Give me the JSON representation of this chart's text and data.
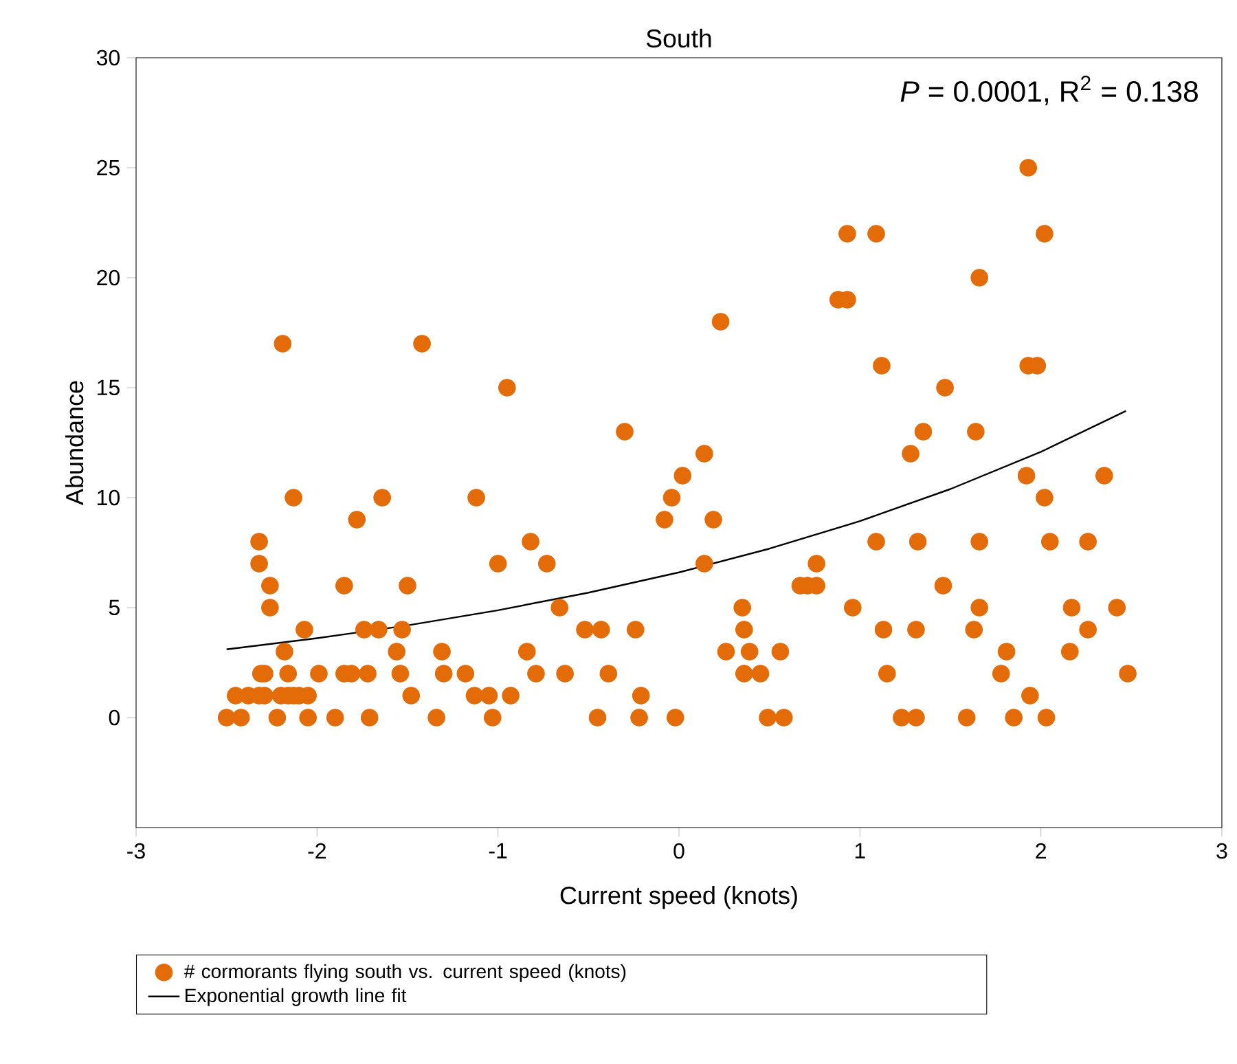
{
  "chart_data": {
    "type": "scatter",
    "title": "South",
    "xlabel": "Current speed (knots)",
    "ylabel": "Abundance",
    "annotations": [
      "*P* = 0.0001,  R$^{2}$ = 0.138"
    ],
    "xlim": [
      -3,
      3
    ],
    "ylim": [
      -5,
      30
    ],
    "xticks": [
      -3,
      -2,
      -1,
      0,
      1,
      2,
      3
    ],
    "yticks": [
      0,
      5,
      10,
      15,
      20,
      25,
      30
    ],
    "legend": "bottom",
    "series": [
      {
        "name": "# cormorants flying south vs. current speed (knots)",
        "color": "#e36c09",
        "marker": "circle",
        "x": [
          -2.5,
          -2.42,
          -2.22,
          -2.05,
          -1.9,
          -1.71,
          -1.34,
          -1.03,
          -0.45,
          -0.22,
          -0.02,
          0.49,
          0.58,
          1.23,
          1.31,
          1.59,
          1.85,
          2.03,
          -2.45,
          -2.38,
          -2.32,
          -2.29,
          -2.2,
          -2.16,
          -2.13,
          -2.1,
          -2.05,
          -1.48,
          -1.13,
          -1.05,
          -0.93,
          -0.21,
          1.94,
          -2.31,
          -2.29,
          -2.16,
          -1.99,
          -1.85,
          -1.81,
          -1.72,
          -1.54,
          -1.3,
          -1.18,
          -0.79,
          -0.63,
          -0.39,
          0.36,
          0.45,
          1.15,
          1.78,
          2.48,
          -2.18,
          -1.56,
          -1.31,
          -0.84,
          0.26,
          0.39,
          0.56,
          1.81,
          2.16,
          -2.07,
          -1.74,
          -1.66,
          -1.53,
          -0.52,
          -0.43,
          -0.24,
          0.36,
          1.13,
          1.31,
          1.63,
          2.26,
          -2.26,
          -0.66,
          0.35,
          0.96,
          1.66,
          2.17,
          2.42,
          -2.26,
          -1.85,
          -1.5,
          0.67,
          0.71,
          0.76,
          1.46,
          -2.32,
          -1.0,
          -0.73,
          0.14,
          0.76,
          -2.32,
          -0.82,
          1.09,
          1.32,
          1.66,
          2.05,
          2.26,
          -1.78,
          -0.08,
          0.19,
          -2.13,
          -1.64,
          -1.12,
          -0.04,
          2.02,
          0.02,
          1.92,
          2.35,
          0.14,
          1.28,
          -0.3,
          1.35,
          1.64,
          -0.95,
          1.47,
          1.12,
          1.93,
          1.98,
          -2.19,
          -1.42,
          0.23,
          0.88,
          0.93,
          1.66,
          0.93,
          1.09,
          2.02,
          1.93
        ],
        "values": [
          0,
          0,
          0,
          0,
          0,
          0,
          0,
          0,
          0,
          0,
          0,
          0,
          0,
          0,
          0,
          0,
          0,
          0,
          1,
          1,
          1,
          1,
          1,
          1,
          1,
          1,
          1,
          1,
          1,
          1,
          1,
          1,
          1,
          2,
          2,
          2,
          2,
          2,
          2,
          2,
          2,
          2,
          2,
          2,
          2,
          2,
          2,
          2,
          2,
          2,
          2,
          3,
          3,
          3,
          3,
          3,
          3,
          3,
          3,
          3,
          4,
          4,
          4,
          4,
          4,
          4,
          4,
          4,
          4,
          4,
          4,
          4,
          5,
          5,
          5,
          5,
          5,
          5,
          5,
          6,
          6,
          6,
          6,
          6,
          6,
          6,
          7,
          7,
          7,
          7,
          7,
          8,
          8,
          8,
          8,
          8,
          8,
          8,
          9,
          9,
          9,
          10,
          10,
          10,
          10,
          10,
          11,
          11,
          11,
          12,
          12,
          13,
          13,
          13,
          15,
          15,
          16,
          16,
          16,
          17,
          17,
          18,
          19,
          19,
          20,
          22,
          22,
          22,
          25
        ]
      },
      {
        "name": "Exponential growth line fit",
        "type": "line",
        "color": "#000000",
        "marker": "none",
        "line_style": "solid",
        "x": [
          -2.5,
          -2,
          -1.5,
          -1,
          -0.5,
          0,
          0.5,
          1,
          1.5,
          2,
          2.47
        ],
        "values": [
          3.1,
          3.61,
          4.19,
          4.88,
          5.68,
          6.6,
          7.68,
          8.93,
          10.39,
          12.08,
          13.94
        ]
      }
    ]
  }
}
